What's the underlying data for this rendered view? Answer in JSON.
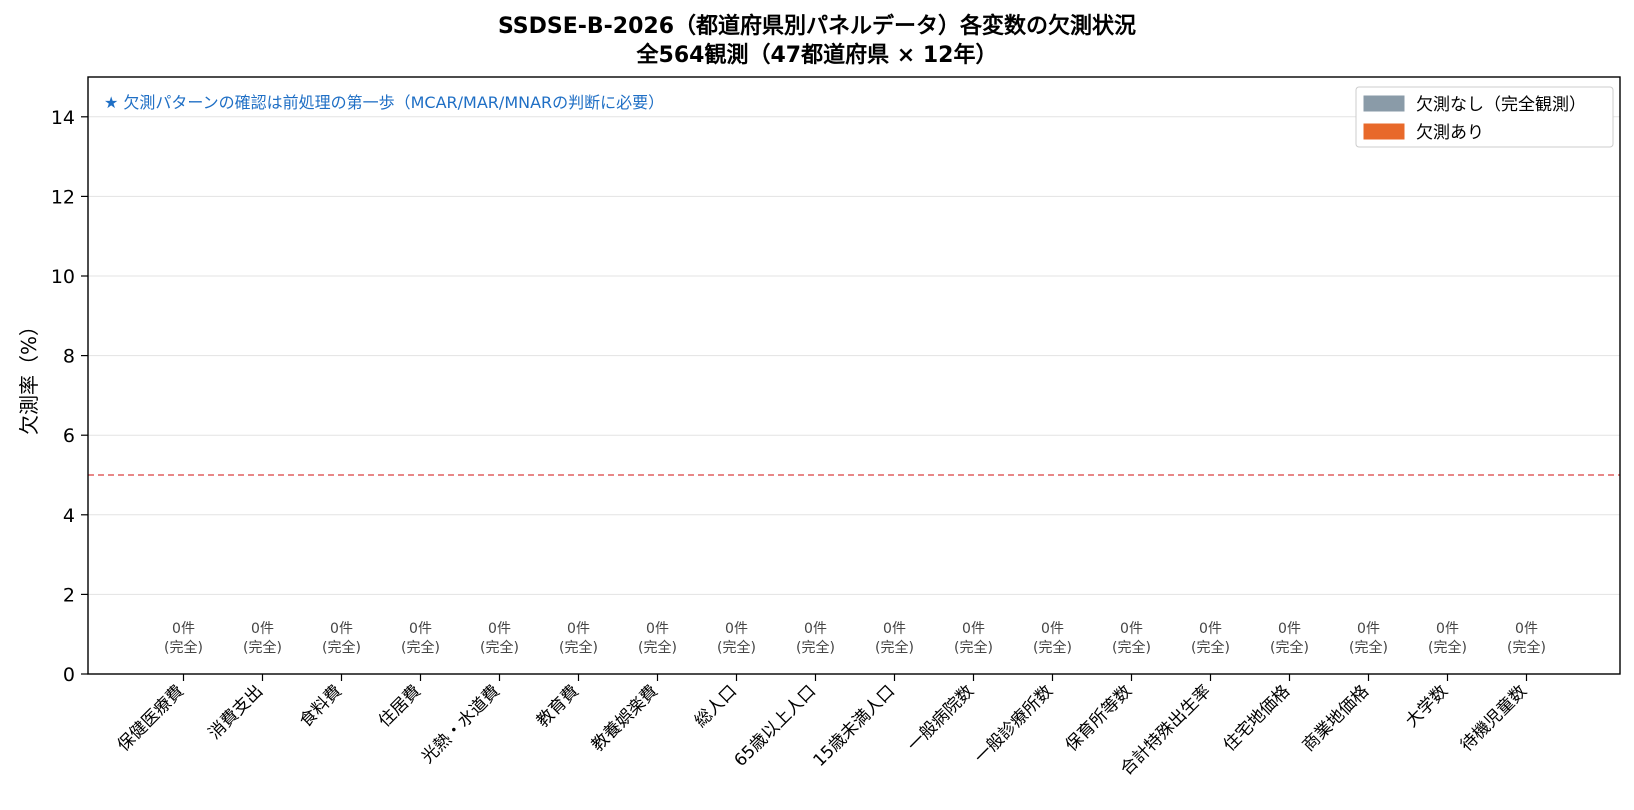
{
  "chart_data": {
    "type": "bar",
    "title_line1": "SSDSE-B-2026（都道府県別パネルデータ）各変数の欠測状況",
    "title_line2": "全564観測（47都道府県 × 12年）",
    "xlabel": "",
    "ylabel": "欠測率（%）",
    "ylim": [
      0,
      15
    ],
    "yticks": [
      0,
      2,
      4,
      6,
      8,
      10,
      12,
      14
    ],
    "grid": "horizontal",
    "reference_line": {
      "y": 5,
      "color": "#e06060",
      "style": "dashed"
    },
    "annotation": "★ 欠測パターンの確認は前処理の第一歩（MCAR/MAR/MNARの判断に必要）",
    "annotation_color": "#1f6fc5",
    "categories": [
      "保健医療費",
      "消費支出",
      "食料費",
      "住居費",
      "光熱・水道費",
      "教育費",
      "教養娯楽費",
      "総人口",
      "65歳以上人口",
      "15歳未満人口",
      "一般病院数",
      "一般診療所数",
      "保育所等数",
      "合計特殊出生率",
      "住宅地価格",
      "商業地価格",
      "大学数",
      "待機児童数"
    ],
    "values": [
      0,
      0,
      0,
      0,
      0,
      0,
      0,
      0,
      0,
      0,
      0,
      0,
      0,
      0,
      0,
      0,
      0,
      0
    ],
    "bar_labels_line1": [
      "0件",
      "0件",
      "0件",
      "0件",
      "0件",
      "0件",
      "0件",
      "0件",
      "0件",
      "0件",
      "0件",
      "0件",
      "0件",
      "0件",
      "0件",
      "0件",
      "0件",
      "0件"
    ],
    "bar_labels_line2": [
      "(完全)",
      "(完全)",
      "(完全)",
      "(完全)",
      "(完全)",
      "(完全)",
      "(完全)",
      "(完全)",
      "(完全)",
      "(完全)",
      "(完全)",
      "(完全)",
      "(完全)",
      "(完全)",
      "(完全)",
      "(完全)",
      "(完全)",
      "(完全)"
    ],
    "legend_position": "top-right",
    "legend": [
      {
        "label": "欠測なし（完全観測）",
        "color": "#8a9ba8"
      },
      {
        "label": "欠測あり",
        "color": "#e8692a"
      }
    ]
  }
}
